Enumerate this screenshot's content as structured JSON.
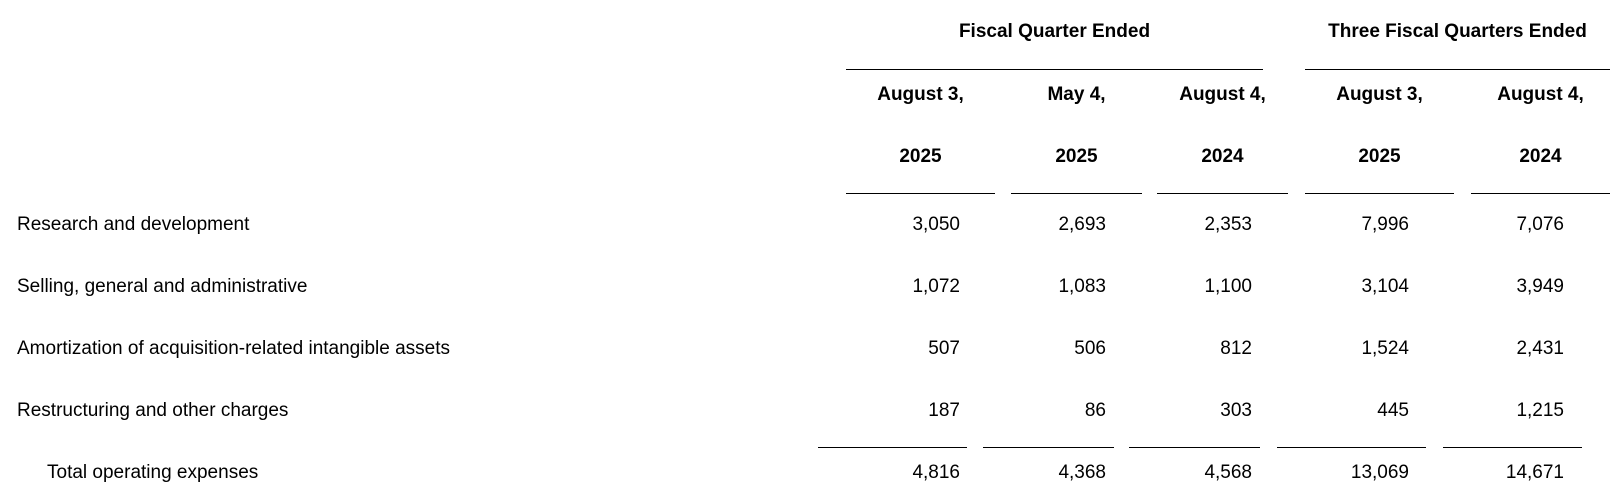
{
  "header": {
    "group1": "Fiscal Quarter Ended",
    "group2": "Three Fiscal Quarters Ended",
    "columns": [
      {
        "line1": "August 3,",
        "line2": "2025"
      },
      {
        "line1": "May 4,",
        "line2": "2025"
      },
      {
        "line1": "August 4,",
        "line2": "2024"
      },
      {
        "line1": "August 3,",
        "line2": "2025"
      },
      {
        "line1": "August 4,",
        "line2": "2024"
      }
    ]
  },
  "rows": [
    {
      "label": "Research and development",
      "values": [
        "3,050",
        "2,693",
        "2,353",
        "7,996",
        "7,076"
      ]
    },
    {
      "label": "Selling, general and administrative",
      "values": [
        "1,072",
        "1,083",
        "1,100",
        "3,104",
        "3,949"
      ]
    },
    {
      "label": "Amortization of acquisition-related intangible assets",
      "values": [
        "507",
        "506",
        "812",
        "1,524",
        "2,431"
      ]
    },
    {
      "label": "Restructuring and other charges",
      "values": [
        "187",
        "86",
        "303",
        "445",
        "1,215"
      ]
    }
  ],
  "total": {
    "label": "Total operating expenses",
    "values": [
      "4,816",
      "4,368",
      "4,568",
      "13,069",
      "14,671"
    ]
  }
}
